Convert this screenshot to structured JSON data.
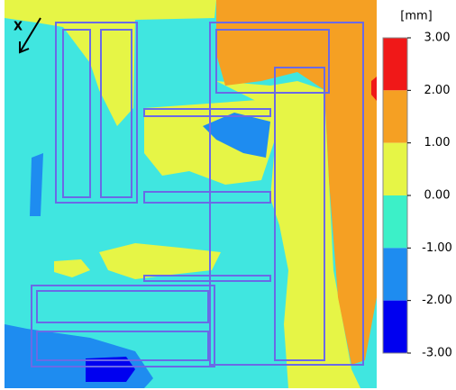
{
  "chart_data": {
    "type": "contour",
    "direction_label": "X",
    "colorbar": {
      "label": "[mm]",
      "ticks": [
        {
          "value": 3,
          "label": "3.00"
        },
        {
          "value": 2,
          "label": "2.00"
        },
        {
          "value": 1,
          "label": "1.00"
        },
        {
          "value": 0,
          "label": "0.00"
        },
        {
          "value": -1,
          "label": "-1.00"
        },
        {
          "value": -2,
          "label": "-2.00"
        },
        {
          "value": -3,
          "label": "-3.00"
        }
      ],
      "colors": [
        "#f01818",
        "#f5a023",
        "#e6f546",
        "#3cf0c8",
        "#1e8cf0",
        "#0000f0"
      ]
    }
  }
}
